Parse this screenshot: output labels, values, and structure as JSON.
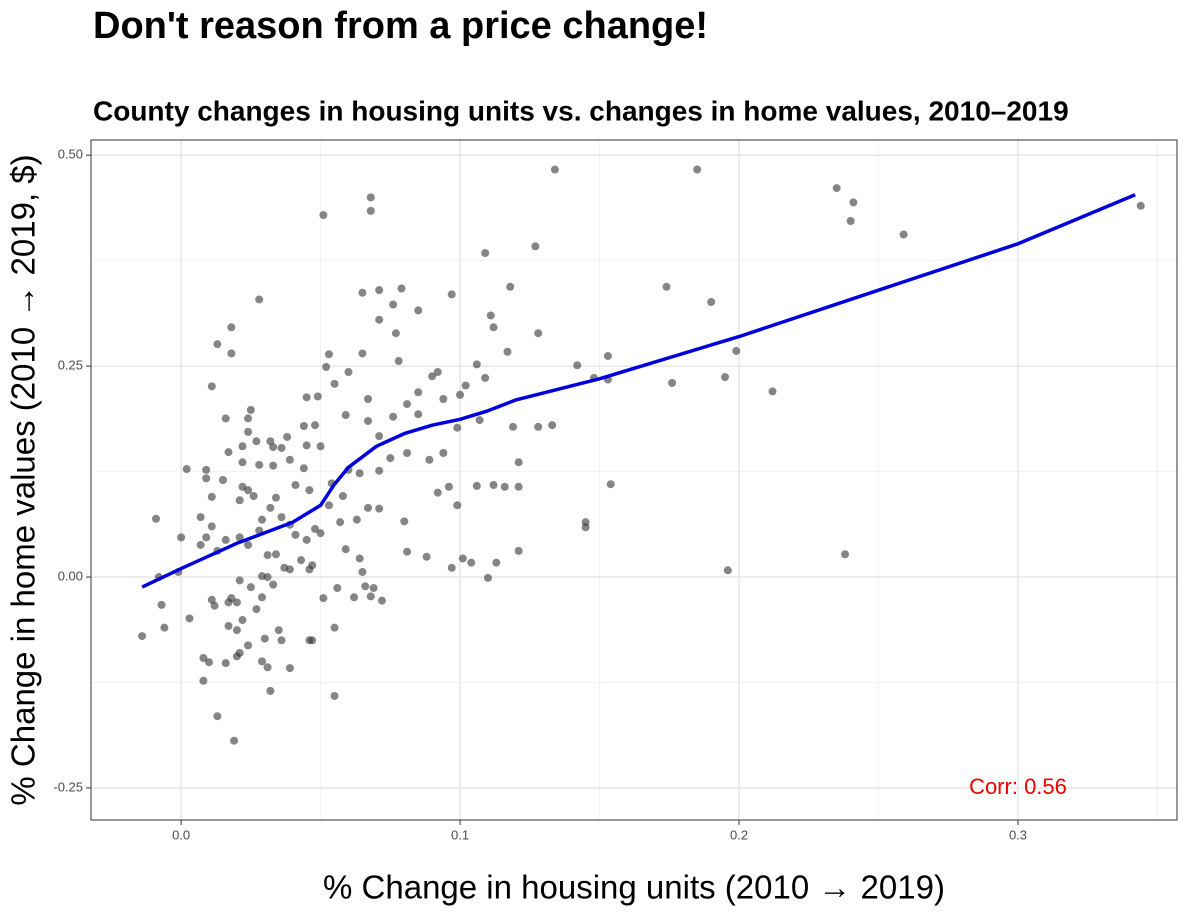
{
  "chart_data": {
    "type": "scatter",
    "title": "Don't reason from a price change!",
    "subtitle": "County changes in housing units vs. changes in home values, 2010–2019",
    "x_label": "% Change in housing units (2010 → 2019)",
    "y_label": "% Change in home values (2010 → 2019, $)",
    "annotation": {
      "text": "Corr: 0.56",
      "x": 0.3,
      "y": -0.25,
      "color": "#ee0000"
    },
    "xlim": [
      -0.0323,
      0.357
    ],
    "ylim": [
      -0.288,
      0.518
    ],
    "xticks": [
      {
        "value": 0,
        "label": "0.0"
      },
      0.1,
      0.2,
      0.3
    ],
    "yticks": [
      {
        "value": -0.25,
        "label": "-0.25"
      },
      {
        "value": 0,
        "label": "0.00"
      },
      {
        "value": 0.25,
        "label": "0.25"
      },
      {
        "value": 0.5,
        "label": "0.50"
      }
    ],
    "x_minor_grid": [
      0.05,
      0.15,
      0.25,
      0.35
    ],
    "y_minor_grid": [
      -0.125,
      0.125,
      0.375
    ],
    "grid": true,
    "series": [
      {
        "type": "scatter",
        "color": "#333333",
        "x": [
          0.134,
          0.185,
          0.235,
          0.241,
          0.24,
          0.259,
          0.344,
          0.068,
          0.068,
          0.051,
          0.127,
          0.109,
          0.174,
          0.19,
          0.028,
          0.199,
          0.212,
          0.195,
          0.176,
          0.153,
          0.142,
          0.148,
          0.153,
          0.154,
          0.145,
          0.145,
          0.196,
          0.238,
          -0.014,
          -0.009,
          -0.008,
          -0.007,
          -0.006,
          0.013,
          0.019,
          0.013,
          0.018,
          0.018,
          0.011,
          0.002,
          0,
          -0.001,
          0.003,
          0.008,
          0.008,
          0.01,
          0.065,
          0.065,
          0.071,
          0.079,
          0.076,
          0.085,
          0.071,
          0.077,
          0.078,
          0.097,
          0.111,
          0.112,
          0.118,
          0.128,
          0.117,
          0.106,
          0.109,
          0.102,
          0.092,
          0.09,
          0.085,
          0.094,
          0.1,
          0.053,
          0.06,
          0.055,
          0.052,
          0.049,
          0.045,
          0.059,
          0.067,
          0.067,
          0.071,
          0.076,
          0.081,
          0.085,
          0.075,
          0.081,
          0.089,
          0.094,
          0.099,
          0.107,
          0.119,
          0.128,
          0.133,
          0.121,
          0.116,
          0.106,
          0.112,
          0.121,
          0.096,
          0.092,
          0.099,
          0.08,
          0.071,
          0.067,
          0.071,
          0.064,
          0.06,
          0.054,
          0.058,
          0.063,
          0.057,
          0.053,
          0.046,
          0.041,
          0.044,
          0.05,
          0.045,
          0.044,
          0.048,
          0.038,
          0.036,
          0.039,
          0.033,
          0.028,
          0.032,
          0.033,
          0.027,
          0.025,
          0.024,
          0.024,
          0.022,
          0.022,
          0.022,
          0.024,
          0.026,
          0.021,
          0.016,
          0.017,
          0.015,
          0.011,
          0.009,
          0.009,
          0.007,
          0.011,
          0.009,
          0.007,
          0.013,
          0.016,
          0.021,
          0.024,
          0.028,
          0.029,
          0.032,
          0.036,
          0.034,
          0.039,
          0.041,
          0.045,
          0.048,
          0.05,
          0.043,
          0.046,
          0.047,
          0.039,
          0.034,
          0.031,
          0.037,
          0.029,
          0.031,
          0.025,
          0.021,
          0.018,
          0.017,
          0.02,
          0.011,
          0.012,
          0.017,
          0.022,
          0.02,
          0.027,
          0.029,
          0.033,
          0.035,
          0.036,
          0.03,
          0.029,
          0.024,
          0.021,
          0.02,
          0.016,
          0.031,
          0.032,
          0.039,
          0.046,
          0.047,
          0.055,
          0.055,
          0.051,
          0.056,
          0.059,
          0.064,
          0.065,
          0.069,
          0.072,
          0.068,
          0.066,
          0.062,
          0.081,
          0.088,
          0.097,
          0.101,
          0.104,
          0.11,
          0.121,
          0.113
        ],
        "values": [
          0.483,
          0.483,
          0.461,
          0.444,
          0.422,
          0.406,
          0.44,
          0.45,
          0.434,
          0.429,
          0.392,
          0.384,
          0.344,
          0.326,
          0.329,
          0.268,
          0.22,
          0.237,
          0.23,
          0.262,
          0.251,
          0.236,
          0.234,
          0.11,
          0.065,
          0.059,
          0.008,
          0.027,
          -0.07,
          0.069,
          0,
          -0.033,
          -0.06,
          -0.165,
          -0.194,
          0.276,
          0.296,
          0.265,
          0.226,
          0.128,
          0.047,
          0.006,
          -0.049,
          -0.096,
          -0.123,
          -0.101,
          0.265,
          0.337,
          0.34,
          0.342,
          0.323,
          0.316,
          0.305,
          0.289,
          0.256,
          0.335,
          0.31,
          0.296,
          0.344,
          0.289,
          0.267,
          0.252,
          0.236,
          0.227,
          0.243,
          0.238,
          0.219,
          0.211,
          0.216,
          0.264,
          0.243,
          0.229,
          0.249,
          0.214,
          0.213,
          0.192,
          0.211,
          0.185,
          0.167,
          0.19,
          0.205,
          0.193,
          0.141,
          0.147,
          0.139,
          0.147,
          0.177,
          0.186,
          0.178,
          0.178,
          0.18,
          0.136,
          0.107,
          0.108,
          0.109,
          0.107,
          0.107,
          0.1,
          0.085,
          0.066,
          0.081,
          0.082,
          0.126,
          0.123,
          0.127,
          0.111,
          0.096,
          0.068,
          0.065,
          0.085,
          0.103,
          0.109,
          0.129,
          0.155,
          0.156,
          0.179,
          0.18,
          0.166,
          0.153,
          0.139,
          0.132,
          0.133,
          0.161,
          0.154,
          0.161,
          0.198,
          0.188,
          0.172,
          0.155,
          0.136,
          0.107,
          0.103,
          0.096,
          0.091,
          0.188,
          0.148,
          0.115,
          0.095,
          0.117,
          0.127,
          0.071,
          0.06,
          0.047,
          0.038,
          0.031,
          0.044,
          0.047,
          0.038,
          0.055,
          0.068,
          0.082,
          0.071,
          0.094,
          0.062,
          0.05,
          0.044,
          0.057,
          0.052,
          0.02,
          0.009,
          0.014,
          0.009,
          0.027,
          0.026,
          0.011,
          0.001,
          0,
          -0.012,
          -0.004,
          -0.025,
          -0.03,
          -0.03,
          -0.027,
          -0.034,
          -0.058,
          -0.051,
          -0.063,
          -0.038,
          -0.024,
          -0.009,
          -0.063,
          -0.075,
          -0.073,
          -0.1,
          -0.081,
          -0.09,
          -0.094,
          -0.102,
          -0.107,
          -0.135,
          -0.108,
          -0.075,
          -0.075,
          -0.06,
          -0.141,
          -0.025,
          -0.013,
          0.033,
          0.022,
          0.006,
          -0.013,
          -0.028,
          -0.023,
          -0.011,
          -0.024,
          0.03,
          0.024,
          0.011,
          0.022,
          0.017,
          -0.001,
          0.031,
          0.017
        ]
      },
      {
        "type": "line",
        "color": "#0000dd",
        "x": [
          -0.014,
          0,
          0.02,
          0.04,
          0.05,
          0.055,
          0.06,
          0.07,
          0.08,
          0.09,
          0.1,
          0.11,
          0.12,
          0.15,
          0.2,
          0.25,
          0.3,
          0.342
        ],
        "values": [
          -0.012,
          0.01,
          0.04,
          0.065,
          0.085,
          0.11,
          0.13,
          0.155,
          0.17,
          0.18,
          0.187,
          0.197,
          0.21,
          0.235,
          0.285,
          0.34,
          0.395,
          0.453
        ]
      }
    ]
  }
}
